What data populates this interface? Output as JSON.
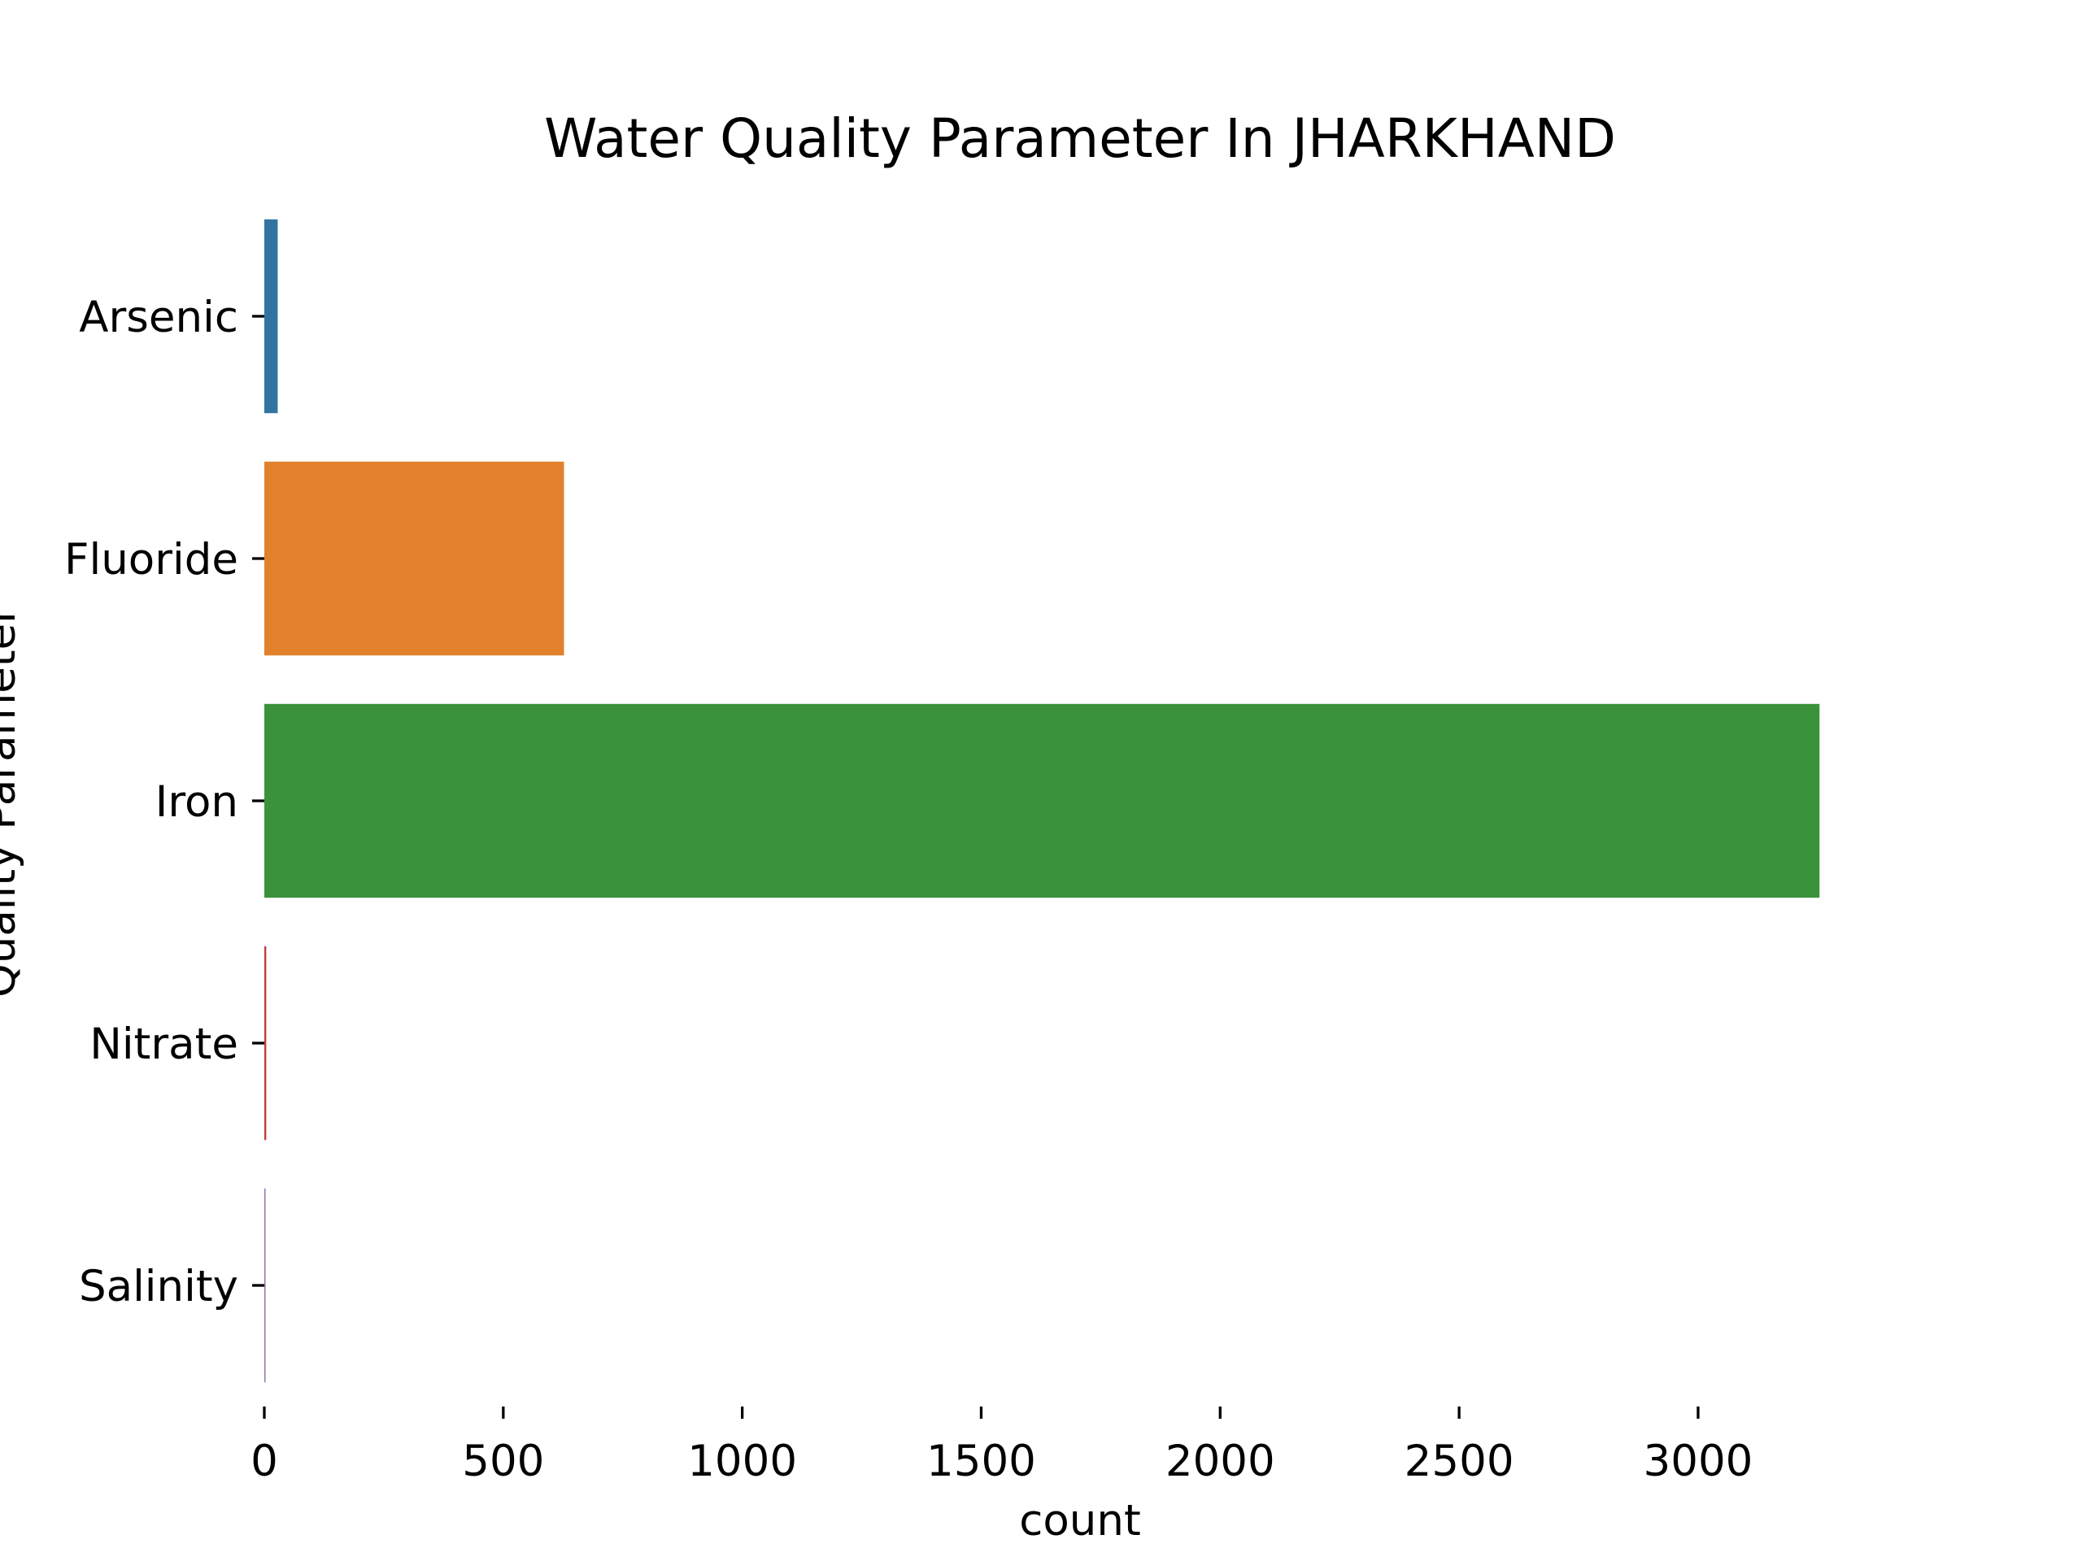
{
  "chart_data": {
    "type": "bar",
    "orientation": "horizontal",
    "title": "Water Quality Parameter In JHARKHAND",
    "xlabel": "count",
    "ylabel": "Quality Parameter",
    "categories": [
      "Arsenic",
      "Fluoride",
      "Iron",
      "Nitrate",
      "Salinity"
    ],
    "values": [
      28,
      627,
      3254,
      4,
      2
    ],
    "colors": [
      "#3274a1",
      "#e1812c",
      "#3a923a",
      "#c03d3e",
      "#9372b2"
    ],
    "xticks": [
      0,
      500,
      1000,
      1500,
      2000,
      2500,
      3000
    ],
    "xtick_labels": [
      "0",
      "500",
      "1000",
      "1500",
      "2000",
      "2500",
      "3000"
    ],
    "xlim": [
      0,
      3417
    ],
    "grid": false,
    "legend": "none"
  }
}
